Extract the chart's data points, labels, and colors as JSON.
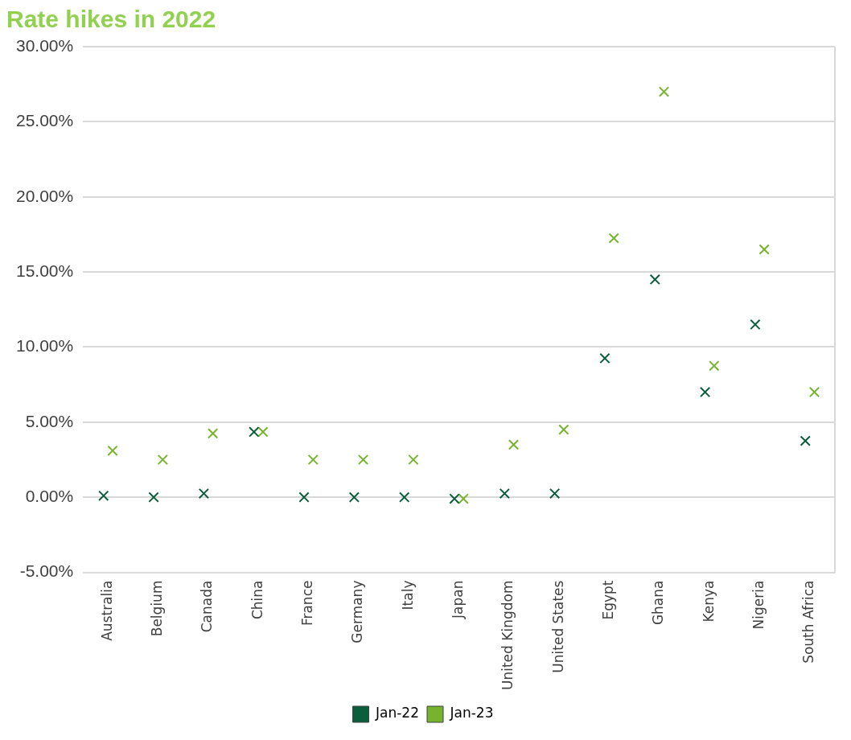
{
  "chart_data": {
    "type": "scatter",
    "title": "Rate hikes in 2022",
    "categories": [
      "Australia",
      "Belgium",
      "Canada",
      "China",
      "France",
      "Germany",
      "Italy",
      "Japan",
      "United Kingdom",
      "United States",
      "Egypt",
      "Ghana",
      "Kenya",
      "Nigeria",
      "South Africa"
    ],
    "series": [
      {
        "name": "Jan-22",
        "color": "#0b5e3b",
        "values": [
          0.1,
          0,
          0.25,
          4.35,
          0,
          0,
          0,
          -0.1,
          0.25,
          0.25,
          9.25,
          14.5,
          7,
          11.5,
          3.75
        ]
      },
      {
        "name": "Jan-23",
        "color": "#77b32c",
        "values": [
          3.1,
          2.5,
          4.25,
          4.35,
          2.5,
          2.5,
          2.5,
          -0.1,
          3.5,
          4.5,
          17.25,
          27,
          8.75,
          16.5,
          7
        ]
      }
    ],
    "ylim": [
      -5,
      30
    ],
    "yticks": [
      {
        "value": -5,
        "label": "-5.00%"
      },
      {
        "value": 0,
        "label": "0.00%"
      },
      {
        "value": 5,
        "label": "5.00%"
      },
      {
        "value": 10,
        "label": "10.00%"
      },
      {
        "value": 15,
        "label": "15.00%"
      },
      {
        "value": 20,
        "label": "20.00%"
      },
      {
        "value": 25,
        "label": "25.00%"
      },
      {
        "value": 30,
        "label": "30.00%"
      }
    ],
    "grid": "y",
    "legend": "bottom",
    "marker": "cross"
  }
}
